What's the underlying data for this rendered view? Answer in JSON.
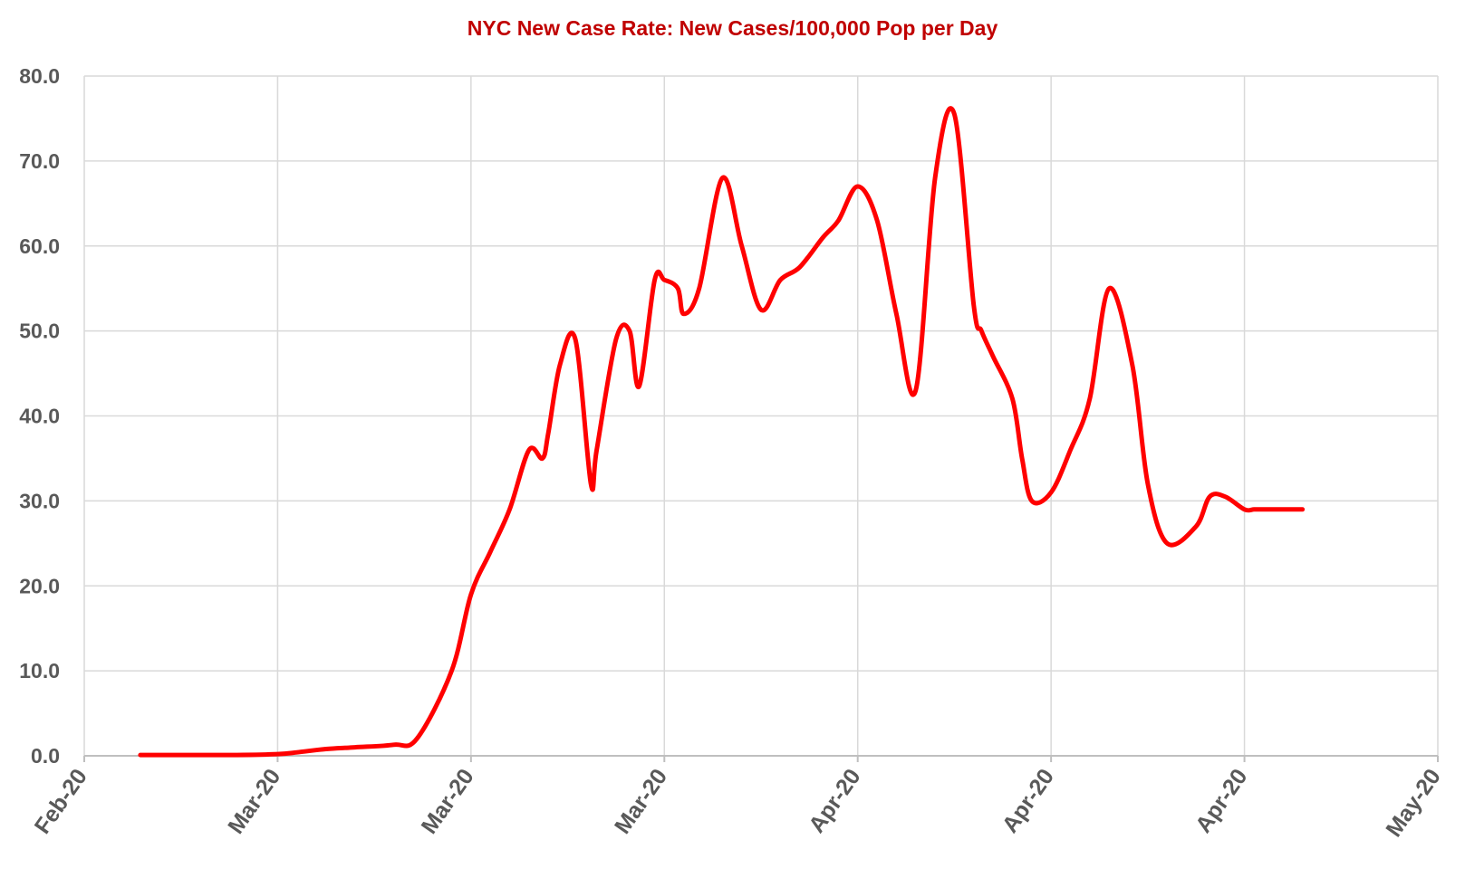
{
  "chart_data": {
    "type": "line",
    "title": "NYC New Case Rate: New Cases/100,000 Pop per Day",
    "xlabel": "",
    "ylabel": "",
    "ylim": [
      0,
      80
    ],
    "y_ticks": [
      "0.0",
      "10.0",
      "20.0",
      "30.0",
      "40.0",
      "50.0",
      "60.0",
      "70.0",
      "80.0"
    ],
    "x_ticks": [
      "Feb-20",
      "Mar-20",
      "Mar-20",
      "Mar-20",
      "Apr-20",
      "Apr-20",
      "Apr-20",
      "May-20"
    ],
    "grid": true,
    "legend": "none",
    "line_color": "#ff0000",
    "series": [
      {
        "x": [
          0.29,
          0.5,
          0.79,
          1.0,
          1.1,
          1.25,
          1.4,
          1.6,
          1.72,
          1.9,
          2.0,
          2.1,
          2.2,
          2.3,
          2.37,
          2.4,
          2.46,
          2.54,
          2.62,
          2.65,
          2.75,
          2.82,
          2.87,
          2.95,
          3.0,
          3.07,
          3.1,
          3.18,
          3.3,
          3.4,
          3.5,
          3.6,
          3.7,
          3.82,
          3.9,
          4.0,
          4.1,
          4.2,
          4.3,
          4.4,
          4.5,
          4.6,
          4.64,
          4.7,
          4.8,
          4.85,
          4.9,
          5.0,
          5.1,
          5.2,
          5.3,
          5.42,
          5.5,
          5.6,
          5.75,
          5.82,
          5.9,
          6.0,
          6.05,
          6.1,
          6.22,
          6.26,
          6.3
        ],
        "y": [
          0.1,
          0.1,
          0.1,
          0.2,
          0.4,
          0.8,
          1.0,
          1.3,
          2.0,
          10.0,
          19.0,
          24.0,
          29.0,
          36.0,
          35.0,
          38.0,
          46.0,
          49.0,
          32.0,
          36.0,
          49.0,
          50.0,
          43.5,
          56.0,
          56.0,
          55.0,
          52.0,
          55.0,
          68.0,
          60.0,
          52.5,
          56.0,
          57.5,
          61.0,
          63.0,
          67.0,
          63.0,
          52.0,
          43.0,
          68.0,
          75.5,
          53.0,
          50.0,
          47.0,
          42.0,
          35.0,
          30.0,
          31.0,
          36.0,
          42.0,
          55.0,
          46.0,
          32.0,
          25.0,
          27.0,
          30.5,
          30.5,
          29.0,
          29.0,
          29.0,
          29.0,
          29.0,
          29.0
        ]
      }
    ]
  }
}
